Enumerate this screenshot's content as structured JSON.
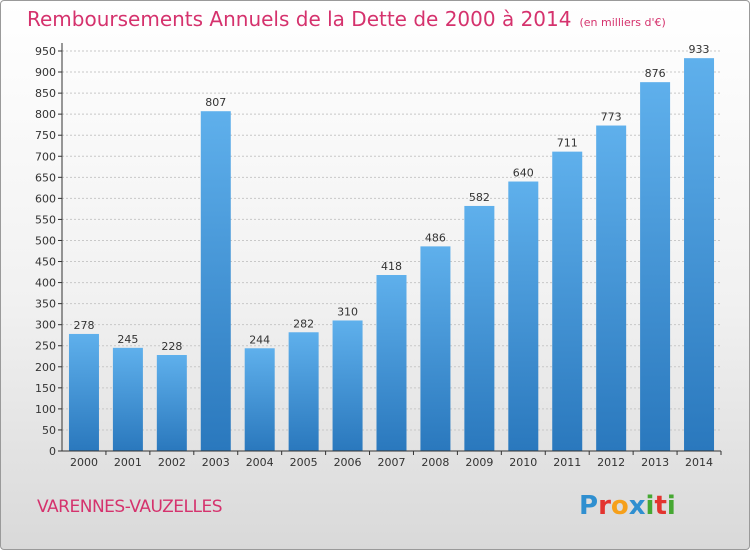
{
  "header": {
    "title": "Remboursements Annuels de la Dette de 2000 à 2014",
    "unit": "(en milliers d'€)"
  },
  "footer": {
    "town": "VARENNES-VAUZELLES",
    "brand_letters": [
      "P",
      "r",
      "o",
      "x",
      "i",
      "t",
      "i"
    ],
    "brand_colors": [
      "#2f8fd0",
      "#e3342f",
      "#f6a01a",
      "#2f8fd0",
      "#46a832",
      "#e3342f",
      "#46a832"
    ]
  },
  "colors": {
    "bar_top": "#5fb0ec",
    "bar_bottom": "#2a78bd",
    "axis": "#333333",
    "grid": "#c8c8c8",
    "label": "#333333"
  },
  "chart_data": {
    "type": "bar",
    "title": "Remboursements Annuels de la Dette de 2000 à 2014",
    "unit": "(en milliers d'€)",
    "categories": [
      "2000",
      "2001",
      "2002",
      "2003",
      "2004",
      "2005",
      "2006",
      "2007",
      "2008",
      "2009",
      "2010",
      "2011",
      "2012",
      "2013",
      "2014"
    ],
    "values": [
      278,
      245,
      228,
      807,
      244,
      282,
      310,
      418,
      486,
      582,
      640,
      711,
      773,
      876,
      933
    ],
    "ylim": [
      0,
      950
    ],
    "ytick_step": 50,
    "xlabel": "",
    "ylabel": "",
    "grid": true
  }
}
